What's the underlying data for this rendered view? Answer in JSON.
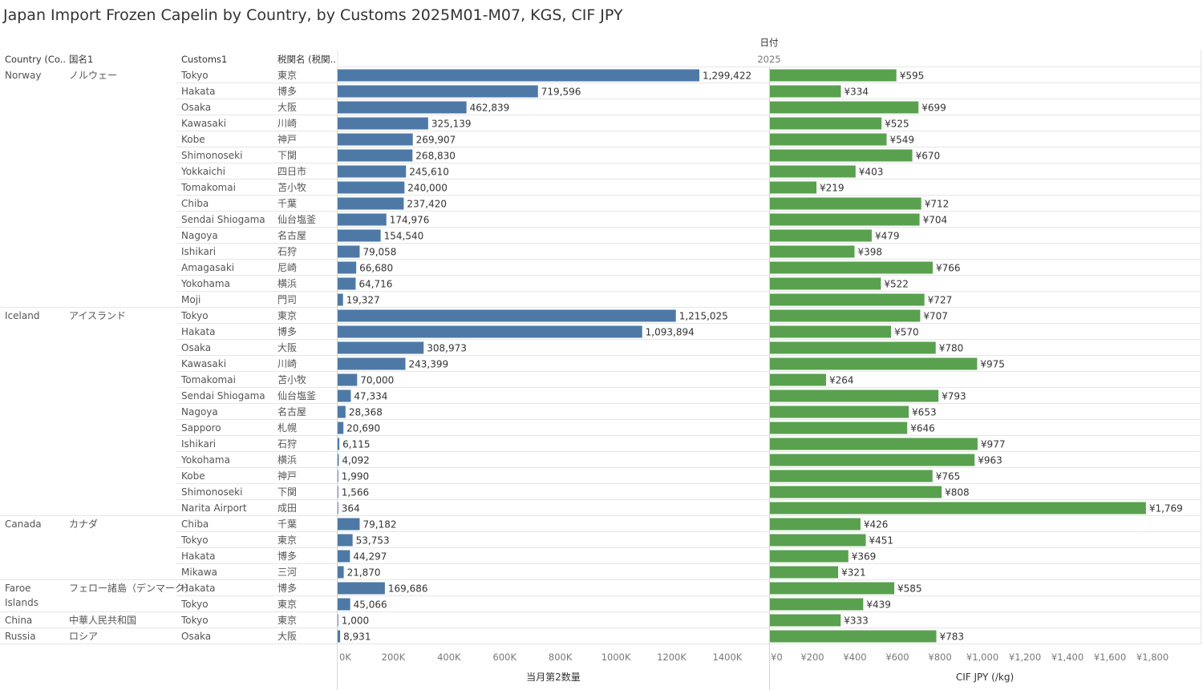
{
  "title": "Japan Import Frozen Capelin by Country, by Customs 2025M01-M07, KGS, CIF JPY",
  "header": {
    "col_country": "Country (Co..",
    "col_country_jp": "国名1",
    "col_customs": "Customs1",
    "col_customs_jp": "税関名 (税関..",
    "date_label": "日付",
    "year": "2025"
  },
  "colors": {
    "quantity": "#4e79a7",
    "price": "#59a14f"
  },
  "chart_data": [
    {
      "type": "bar",
      "orientation": "horizontal",
      "xlabel": "当月第2数量",
      "xlim": [
        0,
        1550000
      ],
      "ticks": [
        0,
        200000,
        400000,
        600000,
        800000,
        1000000,
        1200000,
        1400000
      ],
      "tick_labels": [
        "0K",
        "200K",
        "400K",
        "600K",
        "800K",
        "1000K",
        "1200K",
        "1400K"
      ],
      "grid": false
    },
    {
      "type": "bar",
      "orientation": "horizontal",
      "xlabel": "CIF JPY (/kg)",
      "xlim": [
        0,
        2030
      ],
      "ticks": [
        0,
        200,
        400,
        600,
        800,
        1000,
        1200,
        1400,
        1600,
        1800
      ],
      "tick_labels": [
        "¥0",
        "¥200",
        "¥400",
        "¥600",
        "¥800",
        "¥1,000",
        "¥1,200",
        "¥1,400",
        "¥1,600",
        "¥1,800"
      ],
      "grid": false
    }
  ],
  "groups": [
    {
      "country": "Norway",
      "country_jp": "ノルウェー",
      "rows": [
        {
          "customs": "Tokyo",
          "customs_jp": "東京",
          "qty": 1299422,
          "qty_label": "1,299,422",
          "price": 595,
          "price_label": "¥595"
        },
        {
          "customs": "Hakata",
          "customs_jp": "博多",
          "qty": 719596,
          "qty_label": "719,596",
          "price": 334,
          "price_label": "¥334"
        },
        {
          "customs": "Osaka",
          "customs_jp": "大阪",
          "qty": 462839,
          "qty_label": "462,839",
          "price": 699,
          "price_label": "¥699"
        },
        {
          "customs": "Kawasaki",
          "customs_jp": "川崎",
          "qty": 325139,
          "qty_label": "325,139",
          "price": 525,
          "price_label": "¥525"
        },
        {
          "customs": "Kobe",
          "customs_jp": "神戸",
          "qty": 269907,
          "qty_label": "269,907",
          "price": 549,
          "price_label": "¥549"
        },
        {
          "customs": "Shimonoseki",
          "customs_jp": "下関",
          "qty": 268830,
          "qty_label": "268,830",
          "price": 670,
          "price_label": "¥670"
        },
        {
          "customs": "Yokkaichi",
          "customs_jp": "四日市",
          "qty": 245610,
          "qty_label": "245,610",
          "price": 403,
          "price_label": "¥403"
        },
        {
          "customs": "Tomakomai",
          "customs_jp": "苫小牧",
          "qty": 240000,
          "qty_label": "240,000",
          "price": 219,
          "price_label": "¥219"
        },
        {
          "customs": "Chiba",
          "customs_jp": "千葉",
          "qty": 237420,
          "qty_label": "237,420",
          "price": 712,
          "price_label": "¥712"
        },
        {
          "customs": "Sendai Shiogama",
          "customs_jp": "仙台塩釜",
          "qty": 174976,
          "qty_label": "174,976",
          "price": 704,
          "price_label": "¥704"
        },
        {
          "customs": "Nagoya",
          "customs_jp": "名古屋",
          "qty": 154540,
          "qty_label": "154,540",
          "price": 479,
          "price_label": "¥479"
        },
        {
          "customs": "Ishikari",
          "customs_jp": "石狩",
          "qty": 79058,
          "qty_label": "79,058",
          "price": 398,
          "price_label": "¥398"
        },
        {
          "customs": "Amagasaki",
          "customs_jp": "尼崎",
          "qty": 66680,
          "qty_label": "66,680",
          "price": 766,
          "price_label": "¥766"
        },
        {
          "customs": "Yokohama",
          "customs_jp": "横浜",
          "qty": 64716,
          "qty_label": "64,716",
          "price": 522,
          "price_label": "¥522"
        },
        {
          "customs": "Moji",
          "customs_jp": "門司",
          "qty": 19327,
          "qty_label": "19,327",
          "price": 727,
          "price_label": "¥727"
        }
      ]
    },
    {
      "country": "Iceland",
      "country_jp": "アイスランド",
      "rows": [
        {
          "customs": "Tokyo",
          "customs_jp": "東京",
          "qty": 1215025,
          "qty_label": "1,215,025",
          "price": 707,
          "price_label": "¥707"
        },
        {
          "customs": "Hakata",
          "customs_jp": "博多",
          "qty": 1093894,
          "qty_label": "1,093,894",
          "price": 570,
          "price_label": "¥570"
        },
        {
          "customs": "Osaka",
          "customs_jp": "大阪",
          "qty": 308973,
          "qty_label": "308,973",
          "price": 780,
          "price_label": "¥780"
        },
        {
          "customs": "Kawasaki",
          "customs_jp": "川崎",
          "qty": 243399,
          "qty_label": "243,399",
          "price": 975,
          "price_label": "¥975"
        },
        {
          "customs": "Tomakomai",
          "customs_jp": "苫小牧",
          "qty": 70000,
          "qty_label": "70,000",
          "price": 264,
          "price_label": "¥264"
        },
        {
          "customs": "Sendai Shiogama",
          "customs_jp": "仙台塩釜",
          "qty": 47334,
          "qty_label": "47,334",
          "price": 793,
          "price_label": "¥793"
        },
        {
          "customs": "Nagoya",
          "customs_jp": "名古屋",
          "qty": 28368,
          "qty_label": "28,368",
          "price": 653,
          "price_label": "¥653"
        },
        {
          "customs": "Sapporo",
          "customs_jp": "札幌",
          "qty": 20690,
          "qty_label": "20,690",
          "price": 646,
          "price_label": "¥646"
        },
        {
          "customs": "Ishikari",
          "customs_jp": "石狩",
          "qty": 6115,
          "qty_label": "6,115",
          "price": 977,
          "price_label": "¥977"
        },
        {
          "customs": "Yokohama",
          "customs_jp": "横浜",
          "qty": 4092,
          "qty_label": "4,092",
          "price": 963,
          "price_label": "¥963"
        },
        {
          "customs": "Kobe",
          "customs_jp": "神戸",
          "qty": 1990,
          "qty_label": "1,990",
          "price": 765,
          "price_label": "¥765"
        },
        {
          "customs": "Shimonoseki",
          "customs_jp": "下関",
          "qty": 1566,
          "qty_label": "1,566",
          "price": 808,
          "price_label": "¥808"
        },
        {
          "customs": "Narita Airport",
          "customs_jp": "成田",
          "qty": 364,
          "qty_label": "364",
          "price": 1769,
          "price_label": "¥1,769"
        }
      ]
    },
    {
      "country": "Canada",
      "country_jp": "カナダ",
      "rows": [
        {
          "customs": "Chiba",
          "customs_jp": "千葉",
          "qty": 79182,
          "qty_label": "79,182",
          "price": 426,
          "price_label": "¥426"
        },
        {
          "customs": "Tokyo",
          "customs_jp": "東京",
          "qty": 53753,
          "qty_label": "53,753",
          "price": 451,
          "price_label": "¥451"
        },
        {
          "customs": "Hakata",
          "customs_jp": "博多",
          "qty": 44297,
          "qty_label": "44,297",
          "price": 369,
          "price_label": "¥369"
        },
        {
          "customs": "Mikawa",
          "customs_jp": "三河",
          "qty": 21870,
          "qty_label": "21,870",
          "price": 321,
          "price_label": "¥321"
        }
      ]
    },
    {
      "country": "Faroe Islands",
      "country_lines": [
        "Faroe",
        "Islands"
      ],
      "country_jp": "フェロー諸島（デンマーク）",
      "rows": [
        {
          "customs": "Hakata",
          "customs_jp": "博多",
          "qty": 169686,
          "qty_label": "169,686",
          "price": 585,
          "price_label": "¥585"
        },
        {
          "customs": "Tokyo",
          "customs_jp": "東京",
          "qty": 45066,
          "qty_label": "45,066",
          "price": 439,
          "price_label": "¥439"
        }
      ]
    },
    {
      "country": "China",
      "country_jp": "中華人民共和国",
      "rows": [
        {
          "customs": "Tokyo",
          "customs_jp": "東京",
          "qty": 1000,
          "qty_label": "1,000",
          "price": 333,
          "price_label": "¥333"
        }
      ]
    },
    {
      "country": "Russia",
      "country_jp": "ロシア",
      "rows": [
        {
          "customs": "Osaka",
          "customs_jp": "大阪",
          "qty": 8931,
          "qty_label": "8,931",
          "price": 783,
          "price_label": "¥783"
        }
      ]
    }
  ]
}
